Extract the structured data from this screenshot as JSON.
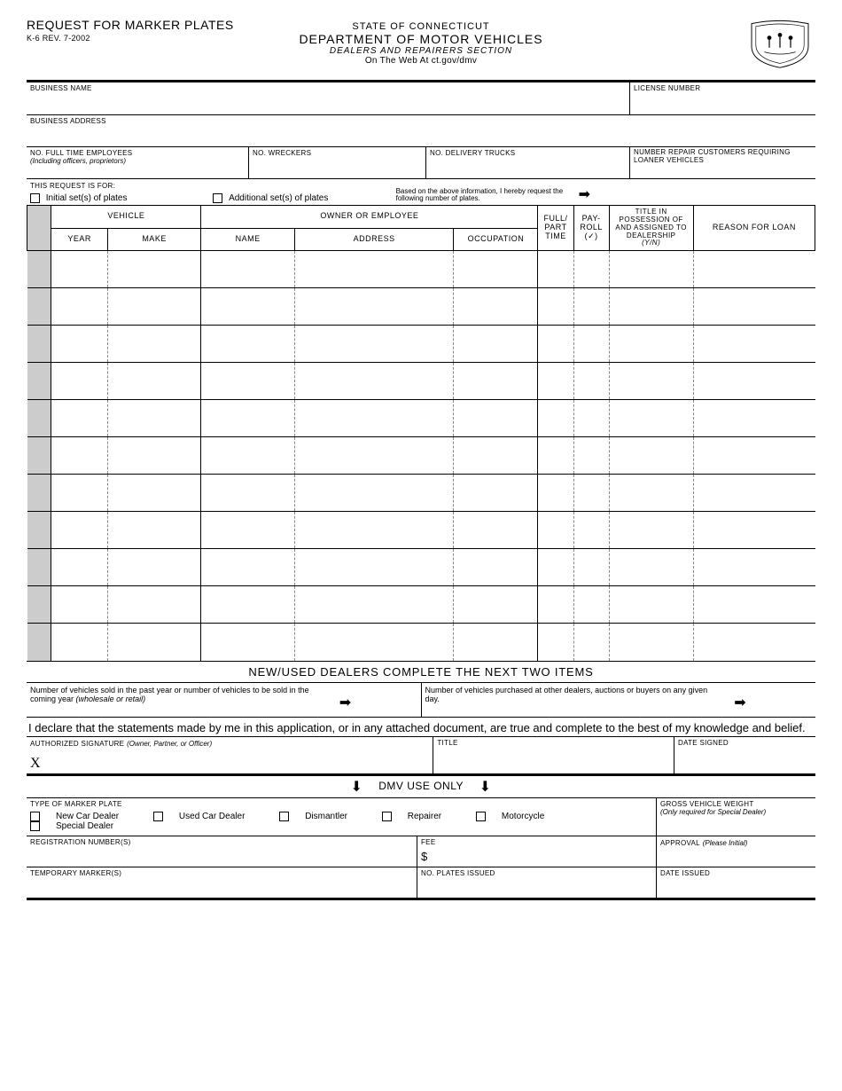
{
  "header": {
    "form_title": "REQUEST FOR MARKER PLATES",
    "form_rev": "K-6 REV. 7-2002",
    "state": "STATE OF CONNECTICUT",
    "dept": "DEPARTMENT OF MOTOR VEHICLES",
    "section": "DEALERS AND REPAIRERS SECTION",
    "web": "On The Web At ct.gov/dmv"
  },
  "labels": {
    "business_name": "BUSINESS NAME",
    "license_number": "LICENSE NUMBER",
    "business_address": "BUSINESS ADDRESS",
    "no_full_time": "NO. FULL TIME EMPLOYEES",
    "no_full_time_sub": "(Including officers, proprietors)",
    "no_wreckers": "NO. WRECKERS",
    "no_delivery": "NO. DELIVERY TRUCKS",
    "no_repair": "NUMBER REPAIR CUSTOMERS REQUIRING LOANER VEHICLES",
    "request_for": "THIS REQUEST IS FOR:",
    "initial_sets": "Initial set(s) of plates",
    "additional_sets": "Additional set(s) of plates",
    "based_on": "Based on the above information, I hereby request the following number of plates."
  },
  "grid": {
    "vehicle": "VEHICLE",
    "owner": "OWNER OR EMPLOYEE",
    "year": "YEAR",
    "make": "MAKE",
    "name": "NAME",
    "address": "ADDRESS",
    "occupation": "OCCUPATION",
    "full_part": "FULL/ PART TIME",
    "payroll": "PAY- ROLL (✓)",
    "title_in": "TITLE IN POSSESSION OF AND ASSIGNED TO DEALERSHIP",
    "yn": "(Y/N)",
    "reason": "REASON FOR LOAN",
    "row_count": 11
  },
  "dealers": {
    "section_title": "NEW/USED DEALERS COMPLETE THE NEXT TWO ITEMS",
    "sold": "Number of vehicles sold in the past year or number of vehicles to be sold in the coming year",
    "sold_sub": "(wholesale or retail)",
    "purchased": "Number of vehicles purchased at other dealers, auctions or buyers on any given day."
  },
  "declare": "I declare that the statements made by me in this application, or in any attached document, are true and complete to the best of my knowledge and belief.",
  "sig": {
    "auth": "AUTHORIZED SIGNATURE",
    "auth_sub": "(Owner, Partner, or Officer)",
    "title": "TITLE",
    "date": "DATE SIGNED",
    "x": "X"
  },
  "dmv": {
    "bar": "DMV USE ONLY",
    "type_label": "TYPE OF MARKER PLATE",
    "types": {
      "new_car": "New Car Dealer",
      "used_car": "Used Car Dealer",
      "dismantler": "Dismantler",
      "repairer": "Repairer",
      "motorcycle": "Motorcycle",
      "special": "Special Dealer"
    },
    "gvw": "GROSS VEHICLE WEIGHT",
    "gvw_sub": "(Only required for Special Dealer)",
    "reg_no": "REGISTRATION NUMBER(S)",
    "fee": "FEE",
    "fee_sym": "$",
    "approval": "APPROVAL",
    "approval_sub": "(Please Initial)",
    "temp": "TEMPORARY MARKER(S)",
    "plates_issued": "NO. PLATES ISSUED",
    "date_issued": "DATE ISSUED"
  }
}
